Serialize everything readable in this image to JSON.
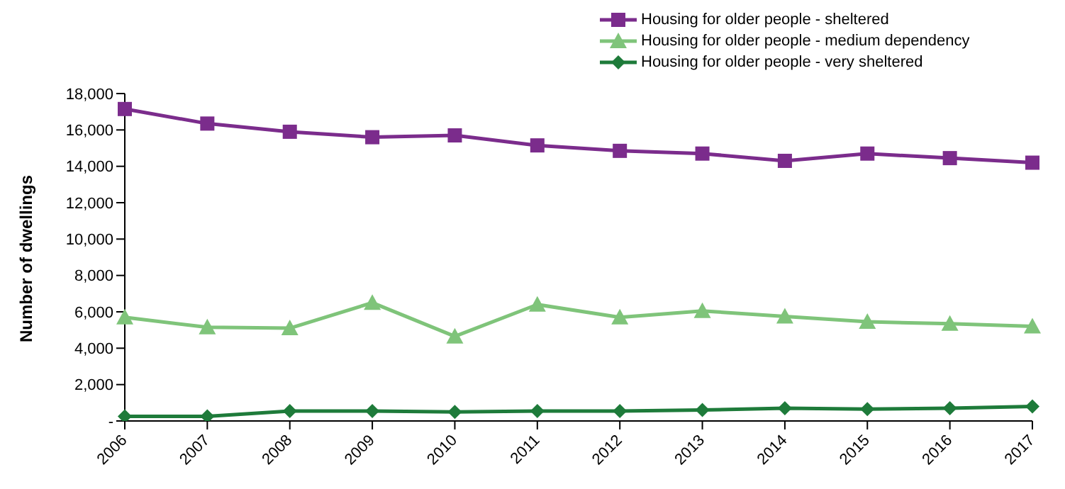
{
  "chart_data": {
    "type": "line",
    "ylabel": "Number of dwellings",
    "categories": [
      "2006",
      "2007",
      "2008",
      "2009",
      "2010",
      "2011",
      "2012",
      "2013",
      "2014",
      "2015",
      "2016",
      "2017"
    ],
    "series": [
      {
        "name": "Housing for older people - sheltered",
        "color": "#7b2c8c",
        "marker": "square",
        "values": [
          17150,
          16350,
          15900,
          15600,
          15700,
          15150,
          14850,
          14700,
          14300,
          14700,
          14450,
          14200
        ]
      },
      {
        "name": "Housing for older people - medium dependency",
        "color": "#7fc47a",
        "marker": "triangle",
        "values": [
          5700,
          5150,
          5100,
          6500,
          4650,
          6400,
          5700,
          6050,
          5750,
          5450,
          5350,
          5200
        ]
      },
      {
        "name": "Housing for older people - very sheltered",
        "color": "#1e7b3a",
        "marker": "diamond",
        "values": [
          250,
          250,
          550,
          550,
          500,
          550,
          550,
          600,
          700,
          650,
          700,
          800
        ]
      }
    ],
    "ylim": [
      0,
      18000
    ],
    "yticks": [
      {
        "value": 0,
        "label": "-"
      },
      {
        "value": 2000,
        "label": "2,000"
      },
      {
        "value": 4000,
        "label": "4,000"
      },
      {
        "value": 6000,
        "label": "6,000"
      },
      {
        "value": 8000,
        "label": "8,000"
      },
      {
        "value": 10000,
        "label": "10,000"
      },
      {
        "value": 12000,
        "label": "12,000"
      },
      {
        "value": 14000,
        "label": "14,000"
      },
      {
        "value": 16000,
        "label": "16,000"
      },
      {
        "value": 18000,
        "label": "18,000"
      }
    ],
    "grid": false,
    "legend": "top right"
  }
}
